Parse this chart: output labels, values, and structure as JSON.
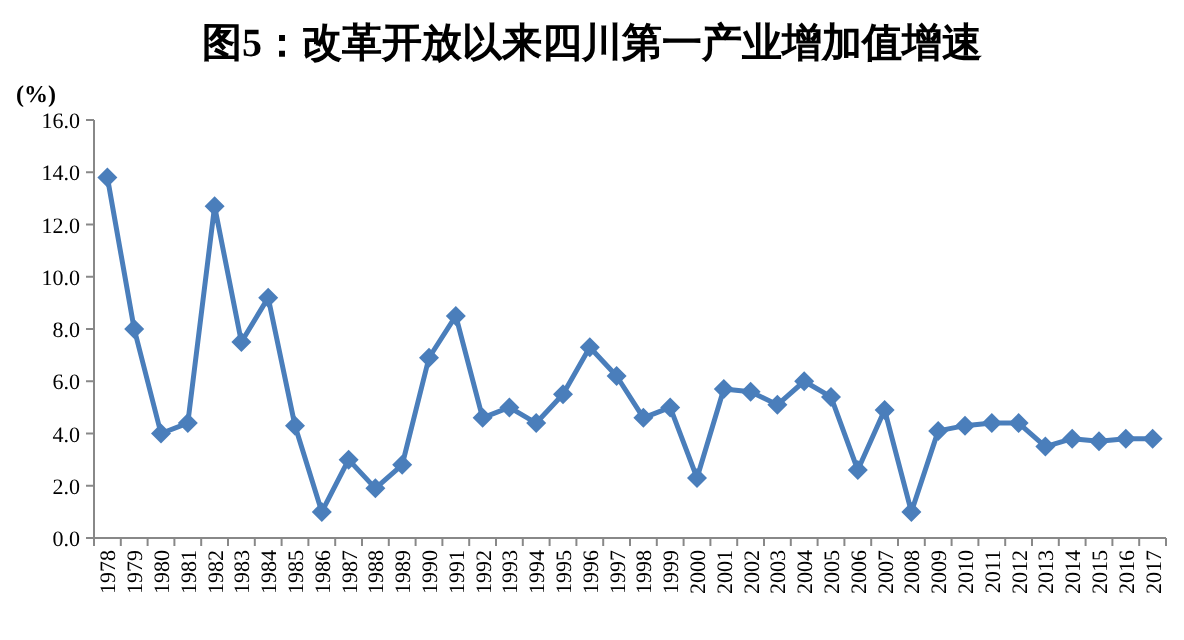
{
  "chart_data": {
    "type": "line",
    "title": "图5：改革开放以来四川第一产业增加值增速",
    "ylabel": "(%)",
    "categories": [
      "1978",
      "1979",
      "1980",
      "1981",
      "1982",
      "1983",
      "1984",
      "1985",
      "1986",
      "1987",
      "1988",
      "1989",
      "1990",
      "1991",
      "1992",
      "1993",
      "1994",
      "1995",
      "1996",
      "1997",
      "1998",
      "1999",
      "2000",
      "2001",
      "2002",
      "2003",
      "2004",
      "2005",
      "2006",
      "2007",
      "2008",
      "2009",
      "2010",
      "2011",
      "2012",
      "2013",
      "2014",
      "2015",
      "2016",
      "2017"
    ],
    "series": [
      {
        "color": "#4a7ebb",
        "values": [
          13.8,
          8.0,
          4.0,
          4.4,
          12.7,
          7.5,
          9.2,
          4.3,
          1.0,
          3.0,
          1.9,
          2.8,
          6.9,
          8.5,
          4.6,
          5.0,
          4.4,
          5.5,
          7.3,
          6.2,
          4.6,
          5.0,
          2.3,
          5.7,
          5.6,
          5.1,
          6.0,
          5.4,
          2.6,
          4.9,
          1.0,
          4.1,
          4.3,
          4.4,
          4.4,
          3.5,
          3.8,
          3.7,
          3.8,
          3.8
        ]
      }
    ],
    "ylim": [
      0,
      16
    ],
    "yticks": [
      {
        "value": 0,
        "label": "0.0"
      },
      {
        "value": 2,
        "label": "2.0"
      },
      {
        "value": 4,
        "label": "4.0"
      },
      {
        "value": 6,
        "label": "6.0"
      },
      {
        "value": 8,
        "label": "8.0"
      },
      {
        "value": 10,
        "label": "10.0"
      },
      {
        "value": 12,
        "label": "12.0"
      },
      {
        "value": 14,
        "label": "14.0"
      },
      {
        "value": 16,
        "label": "16.0"
      }
    ],
    "marker": "diamond",
    "line_style": "solid",
    "grid": false
  }
}
